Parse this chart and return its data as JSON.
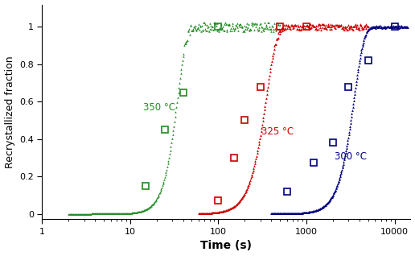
{
  "title": "",
  "xlabel": "Time (s)",
  "ylabel": "Recrystallized fraction",
  "xlim": [
    1,
    15000
  ],
  "ylim": [
    -0.03,
    1.12
  ],
  "colors": {
    "350": "#228B22",
    "325": "#CC0000",
    "300": "#000080"
  },
  "labels": {
    "350": "350 °C",
    "325": "325 °C",
    "300": "300 °C"
  },
  "label_positions": {
    "350": [
      14,
      0.57
    ],
    "325": [
      310,
      0.44
    ],
    "300": [
      2100,
      0.305
    ]
  },
  "avrami_350": {
    "t50": 32,
    "n": 4.5,
    "noise_amp": 0.025
  },
  "avrami_325": {
    "t50": 320,
    "n": 3.8,
    "noise_amp": 0.015
  },
  "avrami_300": {
    "t50": 3200,
    "n": 4.0,
    "noise_amp": 0.005
  },
  "squares_350_t": [
    15,
    25,
    40,
    100
  ],
  "squares_350_f": [
    0.15,
    0.45,
    0.65,
    1.0
  ],
  "squares_325_t": [
    100,
    150,
    200,
    300,
    500,
    1000
  ],
  "squares_325_f": [
    0.07,
    0.3,
    0.5,
    0.68,
    1.0,
    1.0
  ],
  "squares_300_t": [
    600,
    1200,
    2000,
    3000,
    5000,
    10000
  ],
  "squares_300_f": [
    0.12,
    0.275,
    0.38,
    0.68,
    0.82,
    1.0
  ],
  "figsize": [
    5.16,
    3.18
  ],
  "dpi": 100
}
